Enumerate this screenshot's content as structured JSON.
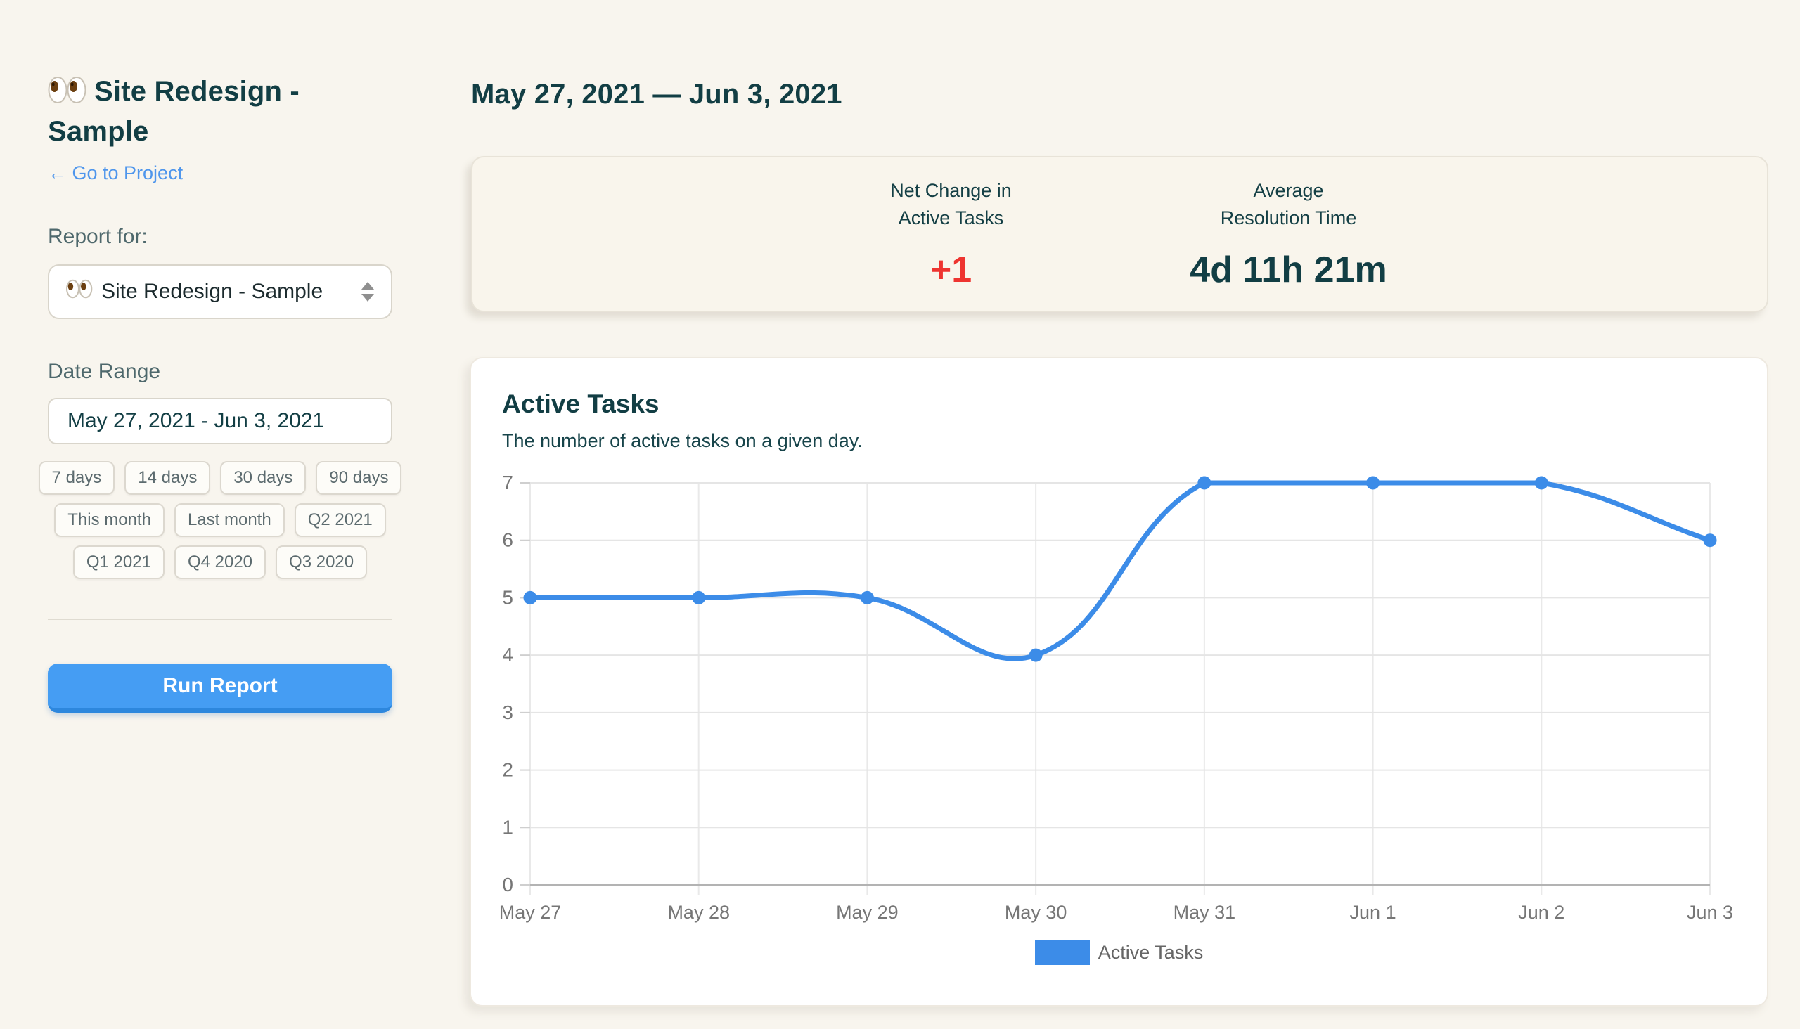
{
  "page": {
    "background": "#f8f5ee"
  },
  "sidebar": {
    "project_emoji": "👀",
    "title": "Site Redesign - Sample",
    "back_link": "← Go to Project",
    "report_for_label": "Report for:",
    "project_select_value": "Site Redesign - Sample",
    "date_range_label": "Date Range",
    "date_range_value": "May 27, 2021 - Jun 3, 2021",
    "quick_ranges": [
      [
        "7 days",
        "14 days",
        "30 days",
        "90 days"
      ],
      [
        "This month",
        "Last month",
        "Q2 2021"
      ],
      [
        "Q1 2021",
        "Q4 2020",
        "Q3 2020"
      ]
    ],
    "run_report_label": "Run Report"
  },
  "main": {
    "heading": "May 27, 2021 — Jun 3, 2021",
    "stats": [
      {
        "label_lines": [
          "Net Change in",
          "Active Tasks"
        ],
        "value": "+1",
        "value_color": "#ee3430"
      },
      {
        "label_lines": [
          "Average",
          "Resolution Time"
        ],
        "value": "4d 11h 21m",
        "value_color": "#123e44"
      }
    ]
  },
  "chart_card": {
    "title": "Active Tasks",
    "subtitle": "The number of active tasks on a given day.",
    "legend_label": "Active Tasks"
  },
  "chart_data": {
    "type": "line",
    "title": "Active Tasks",
    "x": [
      "May 27",
      "May 28",
      "May 29",
      "May 30",
      "May 31",
      "Jun 1",
      "Jun 2",
      "Jun 3"
    ],
    "series": [
      {
        "name": "Active Tasks",
        "values": [
          5,
          5,
          5,
          4,
          7,
          7,
          7,
          6
        ]
      }
    ],
    "ylim": [
      0,
      7
    ],
    "yticks": [
      0,
      1,
      2,
      3,
      4,
      5,
      6,
      7
    ],
    "grid": true,
    "smooth": true,
    "legend_position": "bottom",
    "line_color": "#3c8ce8",
    "grid_color": "#e5e5e5",
    "axis_color": "#b3b3b3",
    "tick_label_color": "#767676"
  }
}
